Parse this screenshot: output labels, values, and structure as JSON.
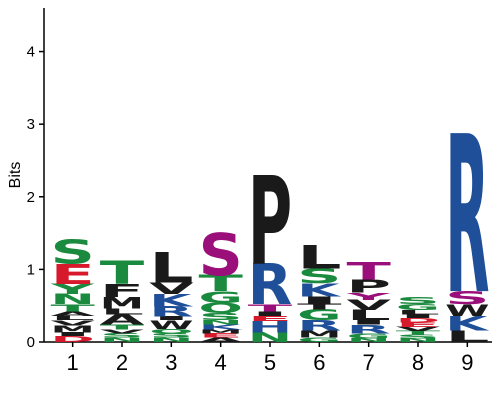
{
  "colors": {
    "green": "#1a8a3e",
    "red": "#d7192c",
    "blue": "#1f4f99",
    "purple": "#9a0f79",
    "black": "#1a1a1a"
  },
  "chart_data": {
    "type": "sequence-logo",
    "ylabel": "Bits",
    "ylim": [
      0,
      4.6
    ],
    "y_ticks": [
      0,
      1,
      2,
      3,
      4
    ],
    "positions": [
      {
        "label": "1",
        "stack": [
          {
            "ch": "D",
            "h": 0.08,
            "c": "red"
          },
          {
            "ch": "I",
            "h": 0.05,
            "c": "black"
          },
          {
            "ch": "M",
            "h": 0.1,
            "c": "black"
          },
          {
            "ch": "V",
            "h": 0.07,
            "c": "black"
          },
          {
            "ch": "L",
            "h": 0.06,
            "c": "black"
          },
          {
            "ch": "A",
            "h": 0.06,
            "c": "black"
          },
          {
            "ch": "T",
            "h": 0.1,
            "c": "green"
          },
          {
            "ch": "N",
            "h": 0.14,
            "c": "green"
          },
          {
            "ch": "Y",
            "h": 0.14,
            "c": "green"
          },
          {
            "ch": "E",
            "h": 0.28,
            "c": "red"
          },
          {
            "ch": "S",
            "h": 0.33,
            "c": "green"
          }
        ]
      },
      {
        "label": "2",
        "stack": [
          {
            "ch": "N",
            "h": 0.06,
            "c": "green"
          },
          {
            "ch": "S",
            "h": 0.06,
            "c": "green"
          },
          {
            "ch": "V",
            "h": 0.05,
            "c": "black"
          },
          {
            "ch": "T",
            "h": 0.07,
            "c": "green"
          },
          {
            "ch": "A",
            "h": 0.14,
            "c": "black"
          },
          {
            "ch": "L",
            "h": 0.08,
            "c": "black"
          },
          {
            "ch": "M",
            "h": 0.16,
            "c": "black"
          },
          {
            "ch": "F",
            "h": 0.18,
            "c": "black"
          },
          {
            "ch": "T",
            "h": 0.32,
            "c": "green"
          }
        ]
      },
      {
        "label": "3",
        "stack": [
          {
            "ch": "N",
            "h": 0.06,
            "c": "green"
          },
          {
            "ch": "S",
            "h": 0.06,
            "c": "green"
          },
          {
            "ch": "Q",
            "h": 0.06,
            "c": "green"
          },
          {
            "ch": "W",
            "h": 0.12,
            "c": "black"
          },
          {
            "ch": "I",
            "h": 0.05,
            "c": "black"
          },
          {
            "ch": "R",
            "h": 0.14,
            "c": "blue"
          },
          {
            "ch": "K",
            "h": 0.17,
            "c": "blue"
          },
          {
            "ch": "V",
            "h": 0.16,
            "c": "black"
          },
          {
            "ch": "L",
            "h": 0.42,
            "c": "black"
          }
        ]
      },
      {
        "label": "4",
        "stack": [
          {
            "ch": "A",
            "h": 0.06,
            "c": "black"
          },
          {
            "ch": "E",
            "h": 0.06,
            "c": "red"
          },
          {
            "ch": "M",
            "h": 0.05,
            "c": "black"
          },
          {
            "ch": "K",
            "h": 0.07,
            "c": "blue"
          },
          {
            "ch": "N",
            "h": 0.06,
            "c": "green"
          },
          {
            "ch": "S",
            "h": 0.1,
            "c": "green"
          },
          {
            "ch": "Q",
            "h": 0.14,
            "c": "green"
          },
          {
            "ch": "G",
            "h": 0.16,
            "c": "green"
          },
          {
            "ch": "T",
            "h": 0.22,
            "c": "green"
          },
          {
            "ch": "S",
            "h": 0.58,
            "c": "purple"
          }
        ]
      },
      {
        "label": "5",
        "stack": [
          {
            "ch": "N",
            "h": 0.13,
            "c": "green"
          },
          {
            "ch": "H",
            "h": 0.16,
            "c": "blue"
          },
          {
            "ch": "E",
            "h": 0.07,
            "c": "red"
          },
          {
            "ch": "I",
            "h": 0.06,
            "c": "black"
          },
          {
            "ch": "T",
            "h": 0.1,
            "c": "purple"
          },
          {
            "ch": "R",
            "h": 0.56,
            "c": "blue"
          },
          {
            "ch": "P",
            "h": 1.22,
            "c": "black"
          }
        ]
      },
      {
        "label": "6",
        "stack": [
          {
            "ch": "G",
            "h": 0.06,
            "c": "green"
          },
          {
            "ch": "M",
            "h": 0.1,
            "c": "black"
          },
          {
            "ch": "R",
            "h": 0.14,
            "c": "blue"
          },
          {
            "ch": "G",
            "h": 0.15,
            "c": "green"
          },
          {
            "ch": "T",
            "h": 0.08,
            "c": "black"
          },
          {
            "ch": "I",
            "h": 0.1,
            "c": "black"
          },
          {
            "ch": "K",
            "h": 0.18,
            "c": "blue"
          },
          {
            "ch": "S",
            "h": 0.2,
            "c": "green"
          },
          {
            "ch": "L",
            "h": 0.32,
            "c": "black"
          }
        ]
      },
      {
        "label": "7",
        "stack": [
          {
            "ch": "N",
            "h": 0.05,
            "c": "green"
          },
          {
            "ch": "G",
            "h": 0.07,
            "c": "green"
          },
          {
            "ch": "R",
            "h": 0.12,
            "c": "blue"
          },
          {
            "ch": "I",
            "h": 0.06,
            "c": "black"
          },
          {
            "ch": "L",
            "h": 0.14,
            "c": "black"
          },
          {
            "ch": "V",
            "h": 0.14,
            "c": "black"
          },
          {
            "ch": "Y",
            "h": 0.1,
            "c": "purple"
          },
          {
            "ch": "P",
            "h": 0.18,
            "c": "black"
          },
          {
            "ch": "T",
            "h": 0.24,
            "c": "purple"
          }
        ]
      },
      {
        "label": "8",
        "stack": [
          {
            "ch": "N",
            "h": 0.05,
            "c": "green"
          },
          {
            "ch": "S",
            "h": 0.05,
            "c": "green"
          },
          {
            "ch": "T",
            "h": 0.05,
            "c": "green"
          },
          {
            "ch": "V",
            "h": 0.06,
            "c": "black"
          },
          {
            "ch": "E",
            "h": 0.06,
            "c": "red"
          },
          {
            "ch": "D",
            "h": 0.06,
            "c": "red"
          },
          {
            "ch": "I",
            "h": 0.05,
            "c": "black"
          },
          {
            "ch": "L",
            "h": 0.06,
            "c": "black"
          },
          {
            "ch": "G",
            "h": 0.08,
            "c": "green"
          },
          {
            "ch": "S",
            "h": 0.1,
            "c": "green"
          }
        ]
      },
      {
        "label": "9",
        "stack": [
          {
            "ch": "L",
            "h": 0.16,
            "c": "black"
          },
          {
            "ch": "K",
            "h": 0.2,
            "c": "blue"
          },
          {
            "ch": "W",
            "h": 0.16,
            "c": "black"
          },
          {
            "ch": "S",
            "h": 0.18,
            "c": "purple"
          },
          {
            "ch": "R",
            "h": 2.18,
            "c": "blue"
          }
        ]
      }
    ]
  }
}
